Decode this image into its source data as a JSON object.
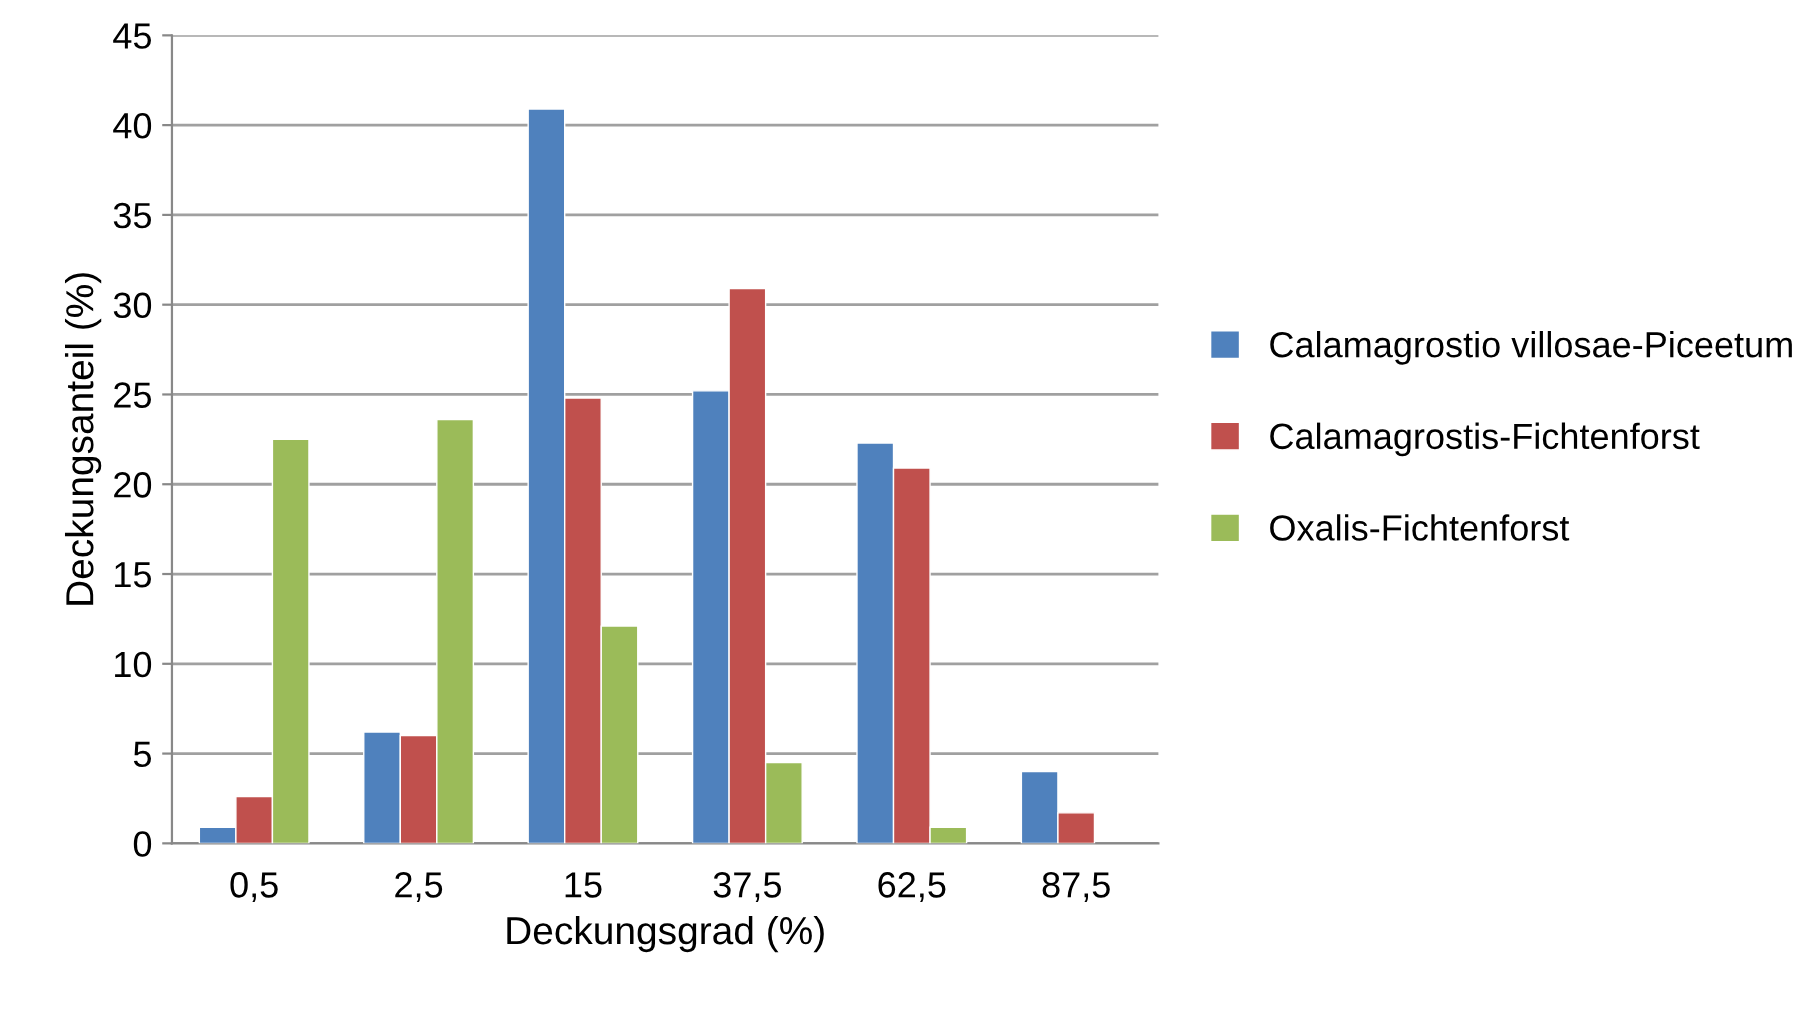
{
  "chart_data": {
    "type": "bar",
    "xlabel": "Deckungsgrad (%)",
    "ylabel": "Deckungsanteil (%)",
    "categories": [
      "0,5",
      "2,5",
      "15",
      "37,5",
      "62,5",
      "87,5"
    ],
    "series": [
      {
        "name": "Calamagrostio villosae-Piceetum",
        "color": "#4f81bd",
        "values": [
          0.9,
          6.2,
          40.9,
          25.2,
          22.3,
          4.0
        ]
      },
      {
        "name": "Calamagrostis-Fichtenforst",
        "color": "#c0504d",
        "values": [
          2.6,
          6.0,
          24.8,
          30.9,
          20.9,
          1.7
        ]
      },
      {
        "name": "Oxalis-Fichtenforst",
        "color": "#9bbb59",
        "values": [
          22.5,
          23.6,
          12.1,
          4.5,
          0.9,
          null
        ]
      }
    ],
    "ylim": [
      0,
      45
    ],
    "yticks": [
      0,
      5,
      10,
      15,
      20,
      25,
      30,
      35,
      40,
      45
    ],
    "grid": "y",
    "legend": "right"
  }
}
